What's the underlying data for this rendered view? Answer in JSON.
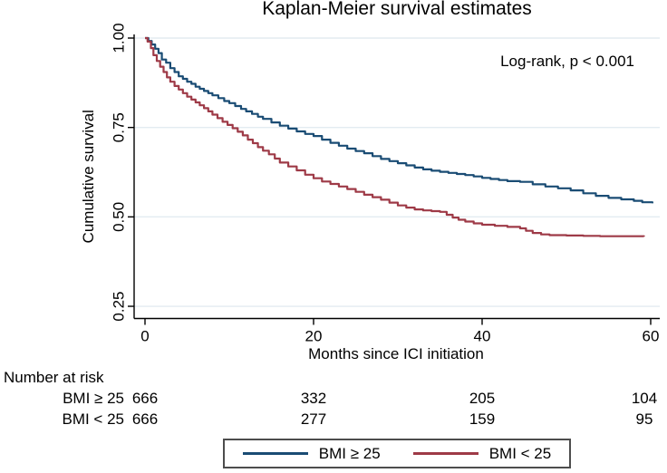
{
  "title": "Kaplan-Meier survival estimates",
  "annotation": "Log-rank, p < 0.001",
  "colors": {
    "title": "#21409a",
    "grid": "#e3ebf1",
    "axis": "#000000",
    "legend_border": "#4d4d4d",
    "series_bmi_ge_25": "#1a4c74",
    "series_bmi_lt_25": "#9e3a47"
  },
  "chart_data": {
    "type": "line",
    "subtype": "kaplan-meier-step",
    "title": "Kaplan-Meier survival estimates",
    "xlabel": "Months since ICI initiation",
    "ylabel": "Cumulative survival",
    "xlim": [
      0,
      61
    ],
    "ylim": [
      0.25,
      1.0
    ],
    "grid": "horizontal",
    "legend_position": "bottom",
    "annotation": "Log-rank, p < 0.001",
    "x_ticks": [
      {
        "v": 0,
        "label": "0"
      },
      {
        "v": 20,
        "label": "20"
      },
      {
        "v": 40,
        "label": "40"
      },
      {
        "v": 60,
        "label": "60"
      }
    ],
    "y_ticks": [
      {
        "v": 1.0,
        "label": "1.00"
      },
      {
        "v": 0.75,
        "label": "0.75"
      },
      {
        "v": 0.5,
        "label": "0.50"
      },
      {
        "v": 0.25,
        "label": "0.25"
      }
    ],
    "series": [
      {
        "name": "BMI ≥ 25",
        "color": "#1a4c74",
        "points": [
          [
            0,
            1
          ],
          [
            0.4,
            0.992
          ],
          [
            0.8,
            0.982
          ],
          [
            1.2,
            0.97
          ],
          [
            1.6,
            0.958
          ],
          [
            2,
            0.94
          ],
          [
            2.5,
            0.931
          ],
          [
            3,
            0.916
          ],
          [
            3.5,
            0.905
          ],
          [
            4,
            0.893
          ],
          [
            4.5,
            0.886
          ],
          [
            5,
            0.878
          ],
          [
            5.5,
            0.872
          ],
          [
            6,
            0.864
          ],
          [
            6.5,
            0.858
          ],
          [
            7,
            0.852
          ],
          [
            7.5,
            0.846
          ],
          [
            8,
            0.84
          ],
          [
            8.7,
            0.832
          ],
          [
            9.4,
            0.824
          ],
          [
            10,
            0.818
          ],
          [
            10.7,
            0.81
          ],
          [
            11.4,
            0.802
          ],
          [
            12,
            0.795
          ],
          [
            12.7,
            0.788
          ],
          [
            13.4,
            0.78
          ],
          [
            14,
            0.774
          ],
          [
            15,
            0.764
          ],
          [
            16,
            0.755
          ],
          [
            17,
            0.747
          ],
          [
            18,
            0.739
          ],
          [
            19,
            0.732
          ],
          [
            20,
            0.726
          ],
          [
            21,
            0.716
          ],
          [
            22,
            0.707
          ],
          [
            23,
            0.699
          ],
          [
            24,
            0.691
          ],
          [
            25,
            0.684
          ],
          [
            26,
            0.678
          ],
          [
            27,
            0.67
          ],
          [
            28,
            0.662
          ],
          [
            29,
            0.656
          ],
          [
            30,
            0.65
          ],
          [
            31,
            0.644
          ],
          [
            32,
            0.638
          ],
          [
            33,
            0.633
          ],
          [
            34,
            0.629
          ],
          [
            35,
            0.626
          ],
          [
            36,
            0.623
          ],
          [
            37,
            0.62
          ],
          [
            38,
            0.617
          ],
          [
            39,
            0.613
          ],
          [
            40,
            0.609
          ],
          [
            41,
            0.606
          ],
          [
            42,
            0.603
          ],
          [
            43,
            0.6
          ],
          [
            44.5,
            0.598
          ],
          [
            46,
            0.591
          ],
          [
            47.5,
            0.585
          ],
          [
            49,
            0.58
          ],
          [
            50.5,
            0.574
          ],
          [
            52,
            0.566
          ],
          [
            53.5,
            0.559
          ],
          [
            55,
            0.553
          ],
          [
            56.5,
            0.549
          ],
          [
            58,
            0.545
          ],
          [
            59,
            0.541
          ],
          [
            60.2,
            0.538
          ]
        ]
      },
      {
        "name": "BMI < 25",
        "color": "#9e3a47",
        "points": [
          [
            0,
            1
          ],
          [
            0.3,
            0.99
          ],
          [
            0.7,
            0.972
          ],
          [
            1,
            0.952
          ],
          [
            1.4,
            0.936
          ],
          [
            1.8,
            0.92
          ],
          [
            2.2,
            0.905
          ],
          [
            2.6,
            0.89
          ],
          [
            3,
            0.878
          ],
          [
            3.5,
            0.866
          ],
          [
            4,
            0.856
          ],
          [
            4.5,
            0.846
          ],
          [
            5,
            0.836
          ],
          [
            5.5,
            0.828
          ],
          [
            6,
            0.82
          ],
          [
            6.5,
            0.812
          ],
          [
            7,
            0.804
          ],
          [
            7.5,
            0.795
          ],
          [
            8,
            0.786
          ],
          [
            8.6,
            0.776
          ],
          [
            9.2,
            0.766
          ],
          [
            9.8,
            0.757
          ],
          [
            10.4,
            0.748
          ],
          [
            11,
            0.738
          ],
          [
            11.6,
            0.728
          ],
          [
            12.2,
            0.716
          ],
          [
            12.8,
            0.706
          ],
          [
            13.4,
            0.695
          ],
          [
            14,
            0.685
          ],
          [
            14.7,
            0.675
          ],
          [
            15.4,
            0.663
          ],
          [
            16,
            0.652
          ],
          [
            17,
            0.641
          ],
          [
            18,
            0.63
          ],
          [
            19,
            0.618
          ],
          [
            20,
            0.608
          ],
          [
            21,
            0.599
          ],
          [
            22,
            0.592
          ],
          [
            23,
            0.585
          ],
          [
            24,
            0.578
          ],
          [
            25,
            0.57
          ],
          [
            26,
            0.562
          ],
          [
            27,
            0.555
          ],
          [
            28,
            0.548
          ],
          [
            29,
            0.54
          ],
          [
            30,
            0.532
          ],
          [
            31,
            0.526
          ],
          [
            32,
            0.521
          ],
          [
            33,
            0.518
          ],
          [
            34,
            0.516
          ],
          [
            35,
            0.514
          ],
          [
            35.8,
            0.506
          ],
          [
            36.5,
            0.498
          ],
          [
            37.2,
            0.492
          ],
          [
            38,
            0.487
          ],
          [
            39,
            0.482
          ],
          [
            40,
            0.478
          ],
          [
            41.5,
            0.475
          ],
          [
            43,
            0.472
          ],
          [
            44.5,
            0.468
          ],
          [
            45.2,
            0.461
          ],
          [
            46,
            0.455
          ],
          [
            47,
            0.451
          ],
          [
            48,
            0.449
          ],
          [
            50,
            0.448
          ],
          [
            52,
            0.447
          ],
          [
            54,
            0.446
          ],
          [
            56,
            0.446
          ],
          [
            59.2,
            0.445
          ]
        ]
      }
    ]
  },
  "risk_table": {
    "heading": "Number at risk",
    "columns_months": [
      0,
      20,
      40,
      60
    ],
    "rows": [
      {
        "label": "BMI ≥ 25",
        "values": [
          "666",
          "332",
          "205",
          "104"
        ]
      },
      {
        "label": "BMI < 25",
        "values": [
          "666",
          "277",
          "159",
          "95"
        ]
      }
    ]
  },
  "legend": {
    "items": [
      {
        "label": "BMI ≥ 25",
        "color": "#1a4c74"
      },
      {
        "label": "BMI < 25",
        "color": "#9e3a47"
      }
    ]
  }
}
